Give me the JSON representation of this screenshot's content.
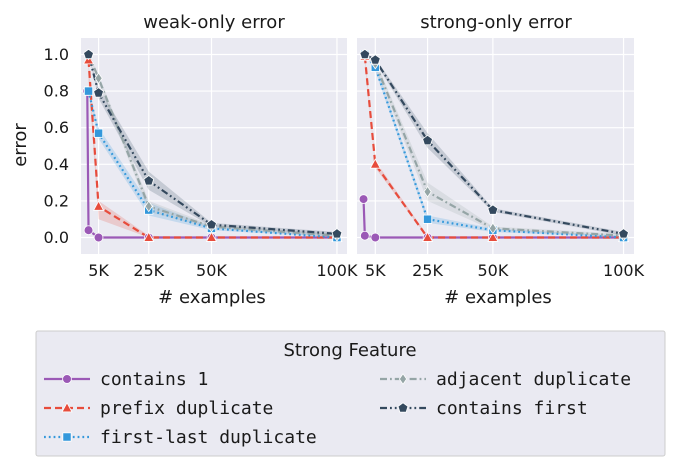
{
  "colors": {
    "panel_bg": "#eaeaf2",
    "grid": "#ffffff",
    "contains_1": "#9b59b6",
    "prefix_duplicate": "#e74c3c",
    "first_last_duplicate": "#3498db",
    "adjacent_duplicate": "#95a5a6",
    "contains_first": "#34495e"
  },
  "chart_data": [
    {
      "type": "line",
      "title": "weak-only error",
      "xlabel": "# examples",
      "ylabel": "error",
      "xlim": [
        -2000,
        104000
      ],
      "ylim": [
        -0.09,
        1.09
      ],
      "xticks": [
        5000,
        25000,
        50000,
        100000
      ],
      "xtick_labels": [
        "5K",
        "25K",
        "50K",
        "100K"
      ],
      "yticks": [
        0.0,
        0.2,
        0.4,
        0.6,
        0.8,
        1.0
      ],
      "ytick_labels": [
        "0.0",
        "0.2",
        "0.4",
        "0.6",
        "0.8",
        "1.0"
      ],
      "grid": true,
      "series": [
        {
          "key": "contains_1",
          "x": [
            500,
            1000,
            5000,
            25000,
            50000,
            100000
          ],
          "y": [
            0.8,
            0.04,
            0.0,
            0.0,
            0.0,
            0.0
          ],
          "band_upper": [
            0.8,
            0.04,
            0.0,
            0.0,
            0.0,
            0.0
          ],
          "band_lower": [
            0.8,
            0.04,
            0.0,
            0.0,
            0.0,
            0.0
          ]
        },
        {
          "key": "prefix_duplicate",
          "x": [
            1000,
            5000,
            25000,
            50000,
            100000
          ],
          "y": [
            0.97,
            0.17,
            0.0,
            0.0,
            0.0
          ],
          "band_upper": [
            0.97,
            0.2,
            0.01,
            0.0,
            0.0
          ],
          "band_lower": [
            0.85,
            0.1,
            0.0,
            0.0,
            0.0
          ]
        },
        {
          "key": "first_last_duplicate",
          "x": [
            1000,
            5000,
            25000,
            50000,
            100000
          ],
          "y": [
            0.8,
            0.57,
            0.15,
            0.05,
            0.0
          ],
          "band_upper": [
            0.82,
            0.6,
            0.19,
            0.06,
            0.01
          ],
          "band_lower": [
            0.78,
            0.54,
            0.12,
            0.04,
            0.0
          ]
        },
        {
          "key": "adjacent_duplicate",
          "x": [
            1000,
            5000,
            25000,
            50000,
            100000
          ],
          "y": [
            1.0,
            0.87,
            0.17,
            0.06,
            0.01
          ],
          "band_upper": [
            1.0,
            0.89,
            0.2,
            0.07,
            0.02
          ],
          "band_lower": [
            1.0,
            0.85,
            0.14,
            0.05,
            0.0
          ]
        },
        {
          "key": "contains_first",
          "x": [
            1000,
            5000,
            25000,
            50000,
            100000
          ],
          "y": [
            1.0,
            0.79,
            0.31,
            0.07,
            0.02
          ],
          "band_upper": [
            1.0,
            0.82,
            0.36,
            0.08,
            0.03
          ],
          "band_lower": [
            1.0,
            0.76,
            0.26,
            0.06,
            0.01
          ]
        }
      ]
    },
    {
      "type": "line",
      "title": "strong-only error",
      "xlabel": "# examples",
      "ylabel": "",
      "xlim": [
        -2000,
        104000
      ],
      "ylim": [
        -0.09,
        1.09
      ],
      "xticks": [
        5000,
        25000,
        50000,
        100000
      ],
      "xtick_labels": [
        "5K",
        "25K",
        "50K",
        "100K"
      ],
      "yticks": [
        0.0,
        0.2,
        0.4,
        0.6,
        0.8,
        1.0
      ],
      "ytick_labels": [],
      "grid": true,
      "series": [
        {
          "key": "contains_1",
          "x": [
            500,
            1000,
            5000,
            25000,
            50000,
            100000
          ],
          "y": [
            0.21,
            0.01,
            0.0,
            0.0,
            0.0,
            0.0
          ],
          "band_upper": [
            0.21,
            0.01,
            0.0,
            0.0,
            0.0,
            0.0
          ],
          "band_lower": [
            0.21,
            0.01,
            0.0,
            0.0,
            0.0,
            0.0
          ]
        },
        {
          "key": "prefix_duplicate",
          "x": [
            1000,
            5000,
            25000,
            50000,
            100000
          ],
          "y": [
            0.99,
            0.4,
            0.0,
            0.0,
            0.0
          ],
          "band_upper": [
            1.0,
            0.42,
            0.01,
            0.0,
            0.0
          ],
          "band_lower": [
            0.97,
            0.38,
            0.0,
            0.0,
            0.0
          ]
        },
        {
          "key": "first_last_duplicate",
          "x": [
            1000,
            5000,
            25000,
            50000,
            100000
          ],
          "y": [
            1.0,
            0.93,
            0.1,
            0.04,
            0.0
          ],
          "band_upper": [
            1.0,
            0.95,
            0.12,
            0.05,
            0.01
          ],
          "band_lower": [
            1.0,
            0.91,
            0.08,
            0.03,
            0.0
          ]
        },
        {
          "key": "adjacent_duplicate",
          "x": [
            1000,
            5000,
            25000,
            50000,
            100000
          ],
          "y": [
            1.0,
            0.95,
            0.25,
            0.05,
            0.01
          ],
          "band_upper": [
            1.0,
            0.97,
            0.3,
            0.06,
            0.02
          ],
          "band_lower": [
            1.0,
            0.93,
            0.2,
            0.04,
            0.0
          ]
        },
        {
          "key": "contains_first",
          "x": [
            1000,
            5000,
            25000,
            50000,
            100000
          ],
          "y": [
            1.0,
            0.97,
            0.53,
            0.15,
            0.02
          ],
          "band_upper": [
            1.0,
            0.98,
            0.57,
            0.16,
            0.03
          ],
          "band_lower": [
            1.0,
            0.96,
            0.49,
            0.14,
            0.01
          ]
        }
      ]
    }
  ],
  "legend": {
    "title": "Strong Feature",
    "placement": "bottom",
    "entries": [
      {
        "key": "contains_1",
        "label": "contains 1",
        "marker": "circle",
        "dash": "solid"
      },
      {
        "key": "prefix_duplicate",
        "label": "prefix duplicate",
        "marker": "triangle",
        "dash": "dashed"
      },
      {
        "key": "first_last_duplicate",
        "label": "first-last duplicate",
        "marker": "square",
        "dash": "dotted"
      },
      {
        "key": "adjacent_duplicate",
        "label": "adjacent duplicate",
        "marker": "diamond",
        "dash": "dashdot"
      },
      {
        "key": "contains_first",
        "label": "contains first",
        "marker": "pentagon",
        "dash": "dashdotdot"
      }
    ]
  }
}
